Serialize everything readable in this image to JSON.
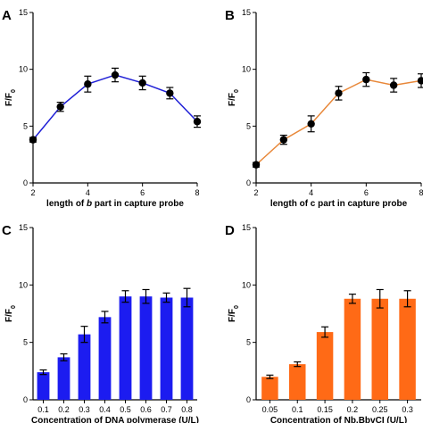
{
  "chart_data": [
    {
      "panel": "A",
      "type": "line",
      "ylabel": "F/F",
      "ylabel_sub": "0",
      "xlabel_parts": [
        "length of ",
        "b",
        " part in capture probe"
      ],
      "xlim": [
        2,
        8
      ],
      "ylim": [
        0,
        15
      ],
      "xticks": [
        2,
        4,
        6,
        8
      ],
      "yticks": [
        0,
        5,
        10,
        15
      ],
      "color": "#1f1fd6",
      "marker_color": "#000000",
      "x": [
        2,
        3,
        4,
        5,
        6,
        7,
        8
      ],
      "y": [
        3.8,
        6.7,
        8.7,
        9.5,
        8.8,
        7.9,
        5.4
      ],
      "err": [
        0.2,
        0.4,
        0.7,
        0.6,
        0.6,
        0.5,
        0.5
      ]
    },
    {
      "panel": "B",
      "type": "line",
      "ylabel": "F/F",
      "ylabel_sub": "0",
      "xlabel_parts": [
        "length of c part in capture probe"
      ],
      "xlim": [
        2,
        8
      ],
      "ylim": [
        0,
        15
      ],
      "xticks": [
        2,
        4,
        6,
        8
      ],
      "yticks": [
        0,
        5,
        10,
        15
      ],
      "color": "#e8883a",
      "marker_color": "#000000",
      "x": [
        2,
        3,
        4,
        5,
        6,
        7,
        8
      ],
      "y": [
        1.6,
        3.8,
        5.2,
        7.9,
        9.1,
        8.6,
        9.0
      ],
      "err": [
        0.2,
        0.4,
        0.7,
        0.6,
        0.6,
        0.6,
        0.6
      ]
    },
    {
      "panel": "C",
      "type": "bar",
      "ylabel": "F/F",
      "ylabel_sub": "0",
      "xlabel_parts": [
        "Concentration of DNA polymerase (U/L)"
      ],
      "ylim": [
        0,
        15
      ],
      "yticks": [
        0,
        5,
        10,
        15
      ],
      "color": "#1c1cf0",
      "categories": [
        "0.1",
        "0.2",
        "0.3",
        "0.4",
        "0.5",
        "0.6",
        "0.7",
        "0.8"
      ],
      "values": [
        2.4,
        3.7,
        5.7,
        7.2,
        9.0,
        9.0,
        8.9,
        8.9
      ],
      "err": [
        0.2,
        0.3,
        0.7,
        0.5,
        0.5,
        0.6,
        0.4,
        0.8
      ]
    },
    {
      "panel": "D",
      "type": "bar",
      "ylabel": "F/F",
      "ylabel_sub": "0",
      "xlabel_parts": [
        "Concentration of Nb.BbvCI (U/L)"
      ],
      "ylim": [
        0,
        15
      ],
      "yticks": [
        0,
        5,
        10,
        15
      ],
      "color": "#ff6a16",
      "categories": [
        "0.05",
        "0.1",
        "0.15",
        "0.2",
        "0.25",
        "0.3"
      ],
      "values": [
        2.0,
        3.1,
        5.9,
        8.8,
        8.8,
        8.8
      ],
      "err": [
        0.15,
        0.2,
        0.45,
        0.4,
        0.8,
        0.7
      ]
    }
  ]
}
